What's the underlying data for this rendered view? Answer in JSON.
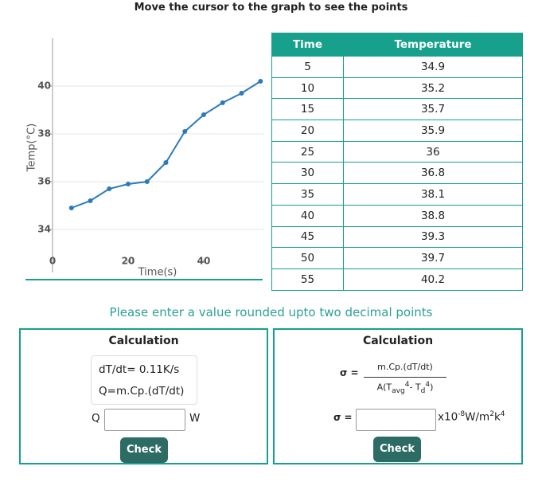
{
  "instruction": "Move the cursor to the graph to see the points",
  "chart_data": {
    "type": "line",
    "x_label": "Time(s)",
    "y_label": "Temp(°C)",
    "x": [
      5,
      10,
      15,
      20,
      25,
      30,
      35,
      40,
      45,
      50,
      55
    ],
    "values": [
      34.9,
      35.2,
      35.7,
      35.9,
      36,
      36.8,
      38.1,
      38.8,
      39.3,
      39.7,
      40.2
    ],
    "color": "#2b7bba",
    "xlim": [
      0,
      56
    ],
    "ylim": [
      32.6,
      42
    ],
    "xticks": [
      0,
      20,
      40
    ],
    "yticks": [
      34,
      36,
      38,
      40
    ],
    "grid": true
  },
  "table": {
    "headers": [
      "Time",
      "Temperature"
    ],
    "rows": [
      [
        5,
        34.9
      ],
      [
        10,
        35.2
      ],
      [
        15,
        35.7
      ],
      [
        20,
        35.9
      ],
      [
        25,
        36
      ],
      [
        30,
        36.8
      ],
      [
        35,
        38.1
      ],
      [
        40,
        38.8
      ],
      [
        45,
        39.3
      ],
      [
        50,
        39.7
      ],
      [
        55,
        40.2
      ]
    ]
  },
  "prompt": "Please enter a value rounded upto two decimal points",
  "panels": [
    {
      "title": "Calculation",
      "lines": [
        "dT/dt= 0.11K/s",
        "Q=m.Cp.(dT/dt)"
      ],
      "input_label": "Q",
      "unit": "W",
      "button": "Check"
    },
    {
      "title": "Calculation",
      "formula_label": "σ =",
      "numerator": "m.Cp.(dT/dt)",
      "denominator": {
        "a": "A(T",
        "avg": "avg",
        "p1": "4",
        "minus": "- T",
        "d": "d",
        "p2": "4",
        "close": ")"
      },
      "input_label": "σ =",
      "unit": {
        "base": "x10",
        "exp": "-8",
        "rest": "W/m",
        "p": "2",
        "k": "k",
        "q": "4"
      },
      "button": "Check"
    }
  ]
}
